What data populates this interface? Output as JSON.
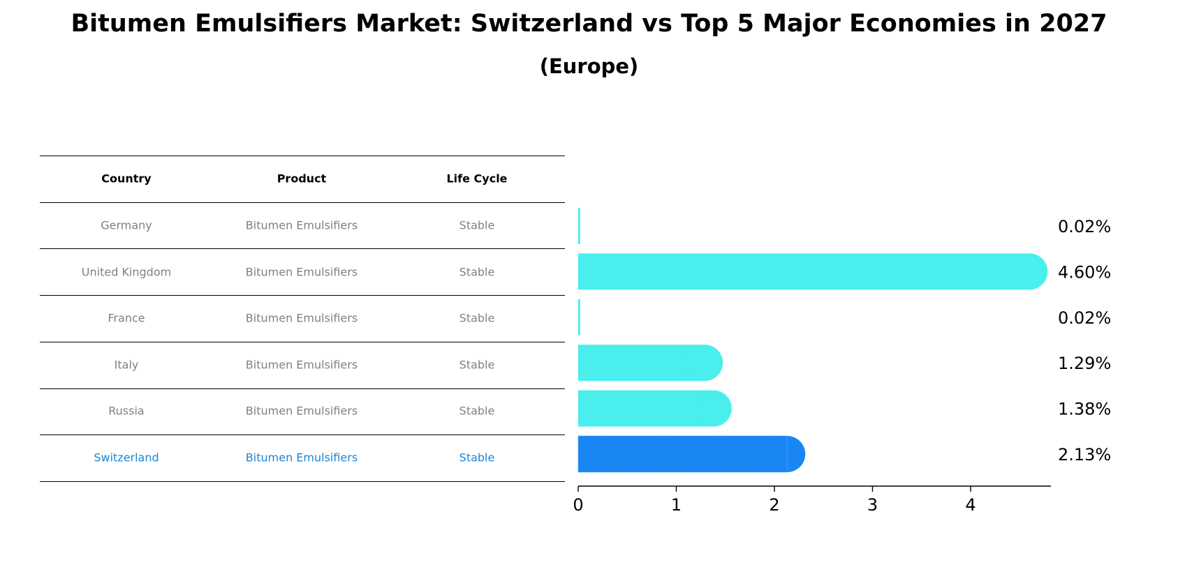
{
  "title": "Bitumen Emulsifiers Market: Switzerland vs Top 5 Major Economies in 2027",
  "subtitle": "(Europe)",
  "table": {
    "headers": [
      "Country",
      "Product",
      "Life Cycle"
    ],
    "rows": [
      {
        "country": "Germany",
        "product": "Bitumen Emulsifiers",
        "life_cycle": "Stable",
        "highlight": false
      },
      {
        "country": "United Kingdom",
        "product": "Bitumen Emulsifiers",
        "life_cycle": "Stable",
        "highlight": false
      },
      {
        "country": "France",
        "product": "Bitumen Emulsifiers",
        "life_cycle": "Stable",
        "highlight": false
      },
      {
        "country": "Italy",
        "product": "Bitumen Emulsifiers",
        "life_cycle": "Stable",
        "highlight": false
      },
      {
        "country": "Russia",
        "product": "Bitumen Emulsifiers",
        "life_cycle": "Stable",
        "highlight": false
      },
      {
        "country": "Switzerland",
        "product": "Bitumen Emulsifiers",
        "life_cycle": "Stable",
        "highlight": true
      }
    ]
  },
  "colors": {
    "bar": "#4aeeec",
    "highlight_bar": "#1a86f4",
    "row_text": "#808080",
    "highlight_text": "#1a86d4",
    "header_text": "#000000"
  },
  "chart_data": {
    "type": "bar",
    "orientation": "horizontal",
    "categories": [
      "Germany",
      "United Kingdom",
      "France",
      "Italy",
      "Russia",
      "Switzerland"
    ],
    "values": [
      0.02,
      4.6,
      0.02,
      1.29,
      1.38,
      2.13
    ],
    "value_labels": [
      "0.02%",
      "4.60%",
      "0.02%",
      "1.29%",
      "1.38%",
      "2.13%"
    ],
    "highlight_category": "Switzerland",
    "xlim": [
      0,
      4.83
    ],
    "xticks": [
      0,
      1,
      2,
      3,
      4
    ],
    "grid": false
  }
}
